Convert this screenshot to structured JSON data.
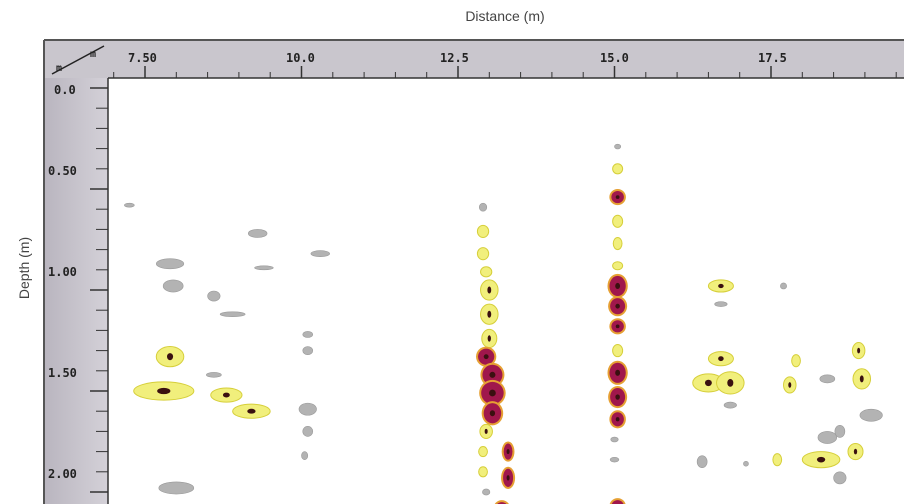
{
  "chart_data": {
    "type": "heatmap",
    "title": "",
    "xlabel": "Distance (m)",
    "ylabel": "Depth (m)",
    "corner_labels": {
      "x_unit": "m",
      "y_unit": "m"
    },
    "x_ticks": [
      "7.50",
      "10.0",
      "12.5",
      "15.0",
      "17.5"
    ],
    "y_ticks": [
      "0.0",
      "0.50",
      "1.00",
      "1.50",
      "2.00"
    ],
    "xlim": [
      7.0,
      19.8
    ],
    "ylim": [
      0.0,
      2.1
    ],
    "legend": "none",
    "grid": false,
    "colors": {
      "frame": "#c9c6cd",
      "gray": "#b3b3b3",
      "yellow": "#f1ef7c",
      "yellow_edge": "#d6cf3a",
      "red": "#a0174c",
      "orange": "#e6a033",
      "dark": "#3a1010"
    },
    "levels": [
      "gray",
      "yellow",
      "red"
    ],
    "anomalies": [
      {
        "x": 7.25,
        "y": 0.58,
        "rx": 0.08,
        "ry": 0.01,
        "level": "gray"
      },
      {
        "x": 7.9,
        "y": 0.87,
        "rx": 0.22,
        "ry": 0.025,
        "level": "gray"
      },
      {
        "x": 7.95,
        "y": 0.98,
        "rx": 0.16,
        "ry": 0.03,
        "level": "gray"
      },
      {
        "x": 7.9,
        "y": 1.33,
        "rx": 0.22,
        "ry": 0.05,
        "level": "yellow"
      },
      {
        "x": 7.8,
        "y": 1.5,
        "rx": 0.48,
        "ry": 0.045,
        "level": "yellow"
      },
      {
        "x": 8.0,
        "y": 1.98,
        "rx": 0.28,
        "ry": 0.03,
        "level": "gray"
      },
      {
        "x": 8.6,
        "y": 1.03,
        "rx": 0.1,
        "ry": 0.025,
        "level": "gray"
      },
      {
        "x": 8.9,
        "y": 1.12,
        "rx": 0.2,
        "ry": 0.012,
        "level": "gray"
      },
      {
        "x": 8.6,
        "y": 1.42,
        "rx": 0.12,
        "ry": 0.012,
        "level": "gray"
      },
      {
        "x": 8.8,
        "y": 1.52,
        "rx": 0.25,
        "ry": 0.035,
        "level": "yellow"
      },
      {
        "x": 9.2,
        "y": 1.6,
        "rx": 0.3,
        "ry": 0.035,
        "level": "yellow"
      },
      {
        "x": 9.3,
        "y": 0.72,
        "rx": 0.15,
        "ry": 0.02,
        "level": "gray"
      },
      {
        "x": 9.4,
        "y": 0.89,
        "rx": 0.15,
        "ry": 0.006,
        "level": "gray"
      },
      {
        "x": 10.3,
        "y": 0.82,
        "rx": 0.15,
        "ry": 0.015,
        "level": "gray"
      },
      {
        "x": 10.1,
        "y": 1.22,
        "rx": 0.08,
        "ry": 0.015,
        "level": "gray"
      },
      {
        "x": 10.1,
        "y": 1.3,
        "rx": 0.08,
        "ry": 0.02,
        "level": "gray"
      },
      {
        "x": 10.1,
        "y": 1.59,
        "rx": 0.14,
        "ry": 0.03,
        "level": "gray"
      },
      {
        "x": 10.1,
        "y": 1.7,
        "rx": 0.08,
        "ry": 0.025,
        "level": "gray"
      },
      {
        "x": 10.05,
        "y": 1.82,
        "rx": 0.05,
        "ry": 0.02,
        "level": "gray"
      },
      {
        "x": 12.9,
        "y": 0.59,
        "rx": 0.06,
        "ry": 0.02,
        "level": "gray"
      },
      {
        "x": 12.9,
        "y": 0.71,
        "rx": 0.09,
        "ry": 0.03,
        "level": "yellow"
      },
      {
        "x": 12.9,
        "y": 0.82,
        "rx": 0.09,
        "ry": 0.03,
        "level": "yellow"
      },
      {
        "x": 12.95,
        "y": 0.91,
        "rx": 0.09,
        "ry": 0.025,
        "level": "yellow"
      },
      {
        "x": 13.0,
        "y": 1.0,
        "rx": 0.14,
        "ry": 0.05,
        "level": "yellow"
      },
      {
        "x": 13.0,
        "y": 1.12,
        "rx": 0.14,
        "ry": 0.05,
        "level": "yellow"
      },
      {
        "x": 13.0,
        "y": 1.24,
        "rx": 0.12,
        "ry": 0.045,
        "level": "yellow"
      },
      {
        "x": 12.95,
        "y": 1.33,
        "rx": 0.13,
        "ry": 0.04,
        "level": "red"
      },
      {
        "x": 13.05,
        "y": 1.42,
        "rx": 0.16,
        "ry": 0.05,
        "level": "red"
      },
      {
        "x": 13.05,
        "y": 1.51,
        "rx": 0.18,
        "ry": 0.055,
        "level": "red"
      },
      {
        "x": 13.05,
        "y": 1.61,
        "rx": 0.14,
        "ry": 0.05,
        "level": "red"
      },
      {
        "x": 12.95,
        "y": 1.7,
        "rx": 0.1,
        "ry": 0.035,
        "level": "yellow"
      },
      {
        "x": 12.9,
        "y": 1.8,
        "rx": 0.07,
        "ry": 0.025,
        "level": "yellow"
      },
      {
        "x": 13.3,
        "y": 1.8,
        "rx": 0.07,
        "ry": 0.04,
        "level": "red"
      },
      {
        "x": 12.9,
        "y": 1.9,
        "rx": 0.07,
        "ry": 0.025,
        "level": "yellow"
      },
      {
        "x": 13.3,
        "y": 1.93,
        "rx": 0.08,
        "ry": 0.045,
        "level": "red"
      },
      {
        "x": 12.95,
        "y": 2.0,
        "rx": 0.06,
        "ry": 0.015,
        "level": "gray"
      },
      {
        "x": 13.2,
        "y": 2.08,
        "rx": 0.1,
        "ry": 0.03,
        "level": "red"
      },
      {
        "x": 15.05,
        "y": 0.29,
        "rx": 0.05,
        "ry": 0.012,
        "level": "gray"
      },
      {
        "x": 15.05,
        "y": 0.4,
        "rx": 0.08,
        "ry": 0.025,
        "level": "yellow"
      },
      {
        "x": 15.05,
        "y": 0.54,
        "rx": 0.1,
        "ry": 0.03,
        "level": "red"
      },
      {
        "x": 15.05,
        "y": 0.66,
        "rx": 0.08,
        "ry": 0.03,
        "level": "yellow"
      },
      {
        "x": 15.05,
        "y": 0.77,
        "rx": 0.07,
        "ry": 0.03,
        "level": "yellow"
      },
      {
        "x": 15.05,
        "y": 0.88,
        "rx": 0.08,
        "ry": 0.02,
        "level": "yellow"
      },
      {
        "x": 15.05,
        "y": 0.98,
        "rx": 0.13,
        "ry": 0.05,
        "level": "red"
      },
      {
        "x": 15.05,
        "y": 1.08,
        "rx": 0.12,
        "ry": 0.04,
        "level": "red"
      },
      {
        "x": 15.05,
        "y": 1.18,
        "rx": 0.1,
        "ry": 0.03,
        "level": "red"
      },
      {
        "x": 15.05,
        "y": 1.3,
        "rx": 0.08,
        "ry": 0.03,
        "level": "yellow"
      },
      {
        "x": 15.05,
        "y": 1.41,
        "rx": 0.13,
        "ry": 0.05,
        "level": "red"
      },
      {
        "x": 15.05,
        "y": 1.53,
        "rx": 0.12,
        "ry": 0.045,
        "level": "red"
      },
      {
        "x": 15.05,
        "y": 1.64,
        "rx": 0.1,
        "ry": 0.035,
        "level": "red"
      },
      {
        "x": 15.0,
        "y": 1.74,
        "rx": 0.06,
        "ry": 0.012,
        "level": "gray"
      },
      {
        "x": 15.0,
        "y": 1.84,
        "rx": 0.07,
        "ry": 0.012,
        "level": "gray"
      },
      {
        "x": 15.05,
        "y": 2.07,
        "rx": 0.1,
        "ry": 0.03,
        "level": "red"
      },
      {
        "x": 16.7,
        "y": 0.98,
        "rx": 0.2,
        "ry": 0.03,
        "level": "yellow"
      },
      {
        "x": 16.7,
        "y": 1.07,
        "rx": 0.1,
        "ry": 0.012,
        "level": "gray"
      },
      {
        "x": 16.7,
        "y": 1.34,
        "rx": 0.2,
        "ry": 0.035,
        "level": "yellow"
      },
      {
        "x": 16.5,
        "y": 1.46,
        "rx": 0.25,
        "ry": 0.045,
        "level": "yellow"
      },
      {
        "x": 16.85,
        "y": 1.46,
        "rx": 0.22,
        "ry": 0.055,
        "level": "yellow"
      },
      {
        "x": 16.85,
        "y": 1.57,
        "rx": 0.1,
        "ry": 0.015,
        "level": "gray"
      },
      {
        "x": 16.4,
        "y": 1.85,
        "rx": 0.08,
        "ry": 0.03,
        "level": "gray"
      },
      {
        "x": 17.1,
        "y": 1.86,
        "rx": 0.04,
        "ry": 0.012,
        "level": "gray"
      },
      {
        "x": 17.7,
        "y": 0.98,
        "rx": 0.05,
        "ry": 0.015,
        "level": "gray"
      },
      {
        "x": 17.9,
        "y": 1.35,
        "rx": 0.07,
        "ry": 0.03,
        "level": "yellow"
      },
      {
        "x": 17.8,
        "y": 1.47,
        "rx": 0.1,
        "ry": 0.04,
        "level": "yellow"
      },
      {
        "x": 17.6,
        "y": 1.84,
        "rx": 0.07,
        "ry": 0.03,
        "level": "yellow"
      },
      {
        "x": 18.3,
        "y": 1.84,
        "rx": 0.3,
        "ry": 0.04,
        "level": "yellow"
      },
      {
        "x": 18.4,
        "y": 1.44,
        "rx": 0.12,
        "ry": 0.02,
        "level": "gray"
      },
      {
        "x": 18.4,
        "y": 1.73,
        "rx": 0.15,
        "ry": 0.03,
        "level": "gray"
      },
      {
        "x": 18.6,
        "y": 1.7,
        "rx": 0.08,
        "ry": 0.03,
        "level": "gray"
      },
      {
        "x": 18.6,
        "y": 1.93,
        "rx": 0.1,
        "ry": 0.03,
        "level": "gray"
      },
      {
        "x": 18.9,
        "y": 1.3,
        "rx": 0.1,
        "ry": 0.04,
        "level": "yellow"
      },
      {
        "x": 18.95,
        "y": 1.44,
        "rx": 0.14,
        "ry": 0.05,
        "level": "yellow"
      },
      {
        "x": 18.85,
        "y": 1.8,
        "rx": 0.12,
        "ry": 0.04,
        "level": "yellow"
      },
      {
        "x": 19.1,
        "y": 1.62,
        "rx": 0.18,
        "ry": 0.03,
        "level": "gray"
      }
    ]
  }
}
